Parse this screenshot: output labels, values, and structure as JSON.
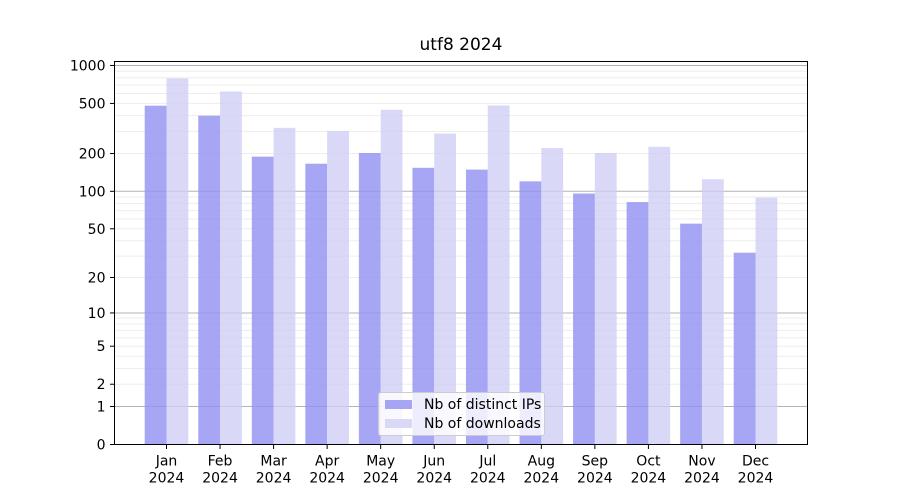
{
  "chart_data": {
    "type": "bar",
    "title": "utf8 2024",
    "months": [
      "Jan",
      "Feb",
      "Mar",
      "Apr",
      "May",
      "Jun",
      "Jul",
      "Aug",
      "Sep",
      "Oct",
      "Nov",
      "Dec"
    ],
    "year_label": "2024",
    "series": [
      {
        "name": "Nb of distinct IPs",
        "color": "#9494f2",
        "alpha": 0.83,
        "values": [
          480,
          400,
          189,
          166,
          202,
          154,
          149,
          120,
          96,
          82,
          55,
          32
        ]
      },
      {
        "name": "Nb of downloads",
        "color": "#cecef5",
        "alpha": 0.78,
        "values": [
          790,
          622,
          320,
          302,
          445,
          288,
          482,
          221,
          202,
          226,
          125,
          89
        ]
      }
    ],
    "yscale": "log1p",
    "ylim": [
      0,
      1075
    ],
    "yticks": [
      1000,
      500,
      200,
      100,
      50,
      20,
      10,
      5,
      2,
      1,
      0
    ],
    "grid": {
      "major_decades": [
        1,
        10,
        100,
        1000
      ],
      "minor_multiples": [
        2,
        3,
        4,
        5,
        6,
        7,
        8,
        9
      ],
      "major_color": "#b3b3b3",
      "minor_color": "#ededed"
    },
    "legend_position": "lower-center",
    "axis_color": "#000000",
    "background": "#ffffff"
  }
}
